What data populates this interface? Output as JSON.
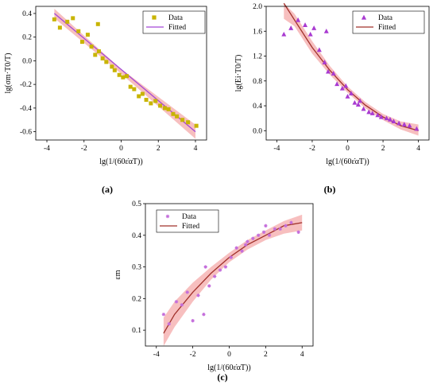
{
  "chart_data": [
    {
      "type": "scatter",
      "panel_label": "(a)",
      "ylabel": "lg(σm·T0/T)",
      "xlabel": "lg(1/(60ε̇αT))",
      "xlim": [
        -4.6,
        4.6
      ],
      "ylim": [
        -0.67,
        0.46
      ],
      "x_ticks": [
        "-4",
        "-2",
        "0",
        "2",
        "4"
      ],
      "y_ticks": [
        "0.4",
        "0.2",
        "0.0",
        "-0.2",
        "-0.4",
        "-0.6"
      ],
      "legend": [
        "Data",
        "Fitted"
      ],
      "legend_position": "top-right",
      "colors": {
        "data": "#c8b400",
        "fit": "#a347d6",
        "band": "#f08a8a"
      },
      "series": [
        {
          "name": "Data",
          "kind": "points",
          "x": [
            -3.6,
            -3.3,
            -2.6,
            -2.3,
            -2.1,
            -1.8,
            -1.6,
            -1.4,
            -1.25,
            -1.0,
            -0.8,
            -0.5,
            -0.35,
            -0.1,
            0.1,
            0.3,
            0.5,
            0.7,
            0.95,
            1.15,
            1.35,
            1.6,
            1.85,
            2.1,
            2.35,
            2.55,
            2.8,
            3.0,
            3.3,
            3.6,
            4.05,
            -2.9,
            -1.2
          ],
          "y": [
            0.35,
            0.28,
            0.36,
            0.25,
            0.16,
            0.22,
            0.12,
            0.05,
            0.31,
            0.02,
            -0.01,
            -0.05,
            -0.08,
            -0.12,
            -0.14,
            -0.13,
            -0.22,
            -0.24,
            -0.3,
            -0.28,
            -0.33,
            -0.36,
            -0.34,
            -0.38,
            -0.4,
            -0.41,
            -0.45,
            -0.47,
            -0.5,
            -0.52,
            -0.55,
            0.33,
            0.08
          ]
        },
        {
          "name": "Fitted",
          "kind": "line",
          "x": [
            -3.6,
            4.0
          ],
          "y": [
            0.4,
            -0.6
          ]
        }
      ],
      "band": {
        "x": [
          -3.6,
          0.0,
          4.0
        ],
        "upper": [
          0.44,
          -0.07,
          -0.54
        ],
        "lower": [
          0.36,
          -0.11,
          -0.66
        ]
      }
    },
    {
      "type": "scatter",
      "panel_label": "(b)",
      "ylabel": "lg(Ei·T0/T)",
      "xlabel": "lg(1/(60ε̇αT))",
      "xlim": [
        -4.6,
        4.6
      ],
      "ylim": [
        -0.15,
        2.0
      ],
      "x_ticks": [
        "-4",
        "-2",
        "0",
        "2",
        "4"
      ],
      "y_ticks": [
        "2.0",
        "1.6",
        "1.2",
        "0.8",
        "0.4",
        "0.0"
      ],
      "legend": [
        "Data",
        "Fitted"
      ],
      "legend_position": "top-right",
      "colors": {
        "data": "#a93bd1",
        "fit": "#a0302a",
        "band": "#f08a8a"
      },
      "series": [
        {
          "name": "Data",
          "kind": "points",
          "x": [
            -3.6,
            -3.2,
            -2.8,
            -2.4,
            -2.1,
            -1.9,
            -1.6,
            -1.3,
            -1.1,
            -0.8,
            -0.6,
            -0.3,
            0.0,
            0.2,
            0.4,
            0.6,
            0.9,
            1.2,
            1.4,
            1.7,
            1.9,
            2.2,
            2.4,
            2.6,
            2.9,
            3.2,
            3.5,
            3.9,
            -1.2,
            -0.1,
            0.7
          ],
          "y": [
            1.55,
            1.65,
            1.78,
            1.7,
            1.55,
            1.65,
            1.3,
            1.1,
            0.95,
            0.92,
            0.75,
            0.68,
            0.55,
            0.6,
            0.45,
            0.42,
            0.35,
            0.3,
            0.28,
            0.25,
            0.22,
            0.2,
            0.18,
            0.15,
            0.12,
            0.1,
            0.08,
            0.03,
            1.6,
            0.72,
            0.48
          ]
        },
        {
          "name": "Fitted",
          "kind": "curve",
          "x": [
            -3.6,
            -3.0,
            -2.0,
            -1.0,
            0.0,
            1.0,
            2.0,
            3.0,
            4.0
          ],
          "y": [
            2.05,
            1.78,
            1.34,
            0.97,
            0.66,
            0.41,
            0.22,
            0.08,
            0.0
          ]
        }
      ],
      "band": {
        "x": [
          -3.6,
          -3.0,
          -2.0,
          -1.0,
          0.0,
          1.0,
          2.0,
          3.0,
          4.0
        ],
        "upper": [
          2.05,
          1.88,
          1.44,
          1.04,
          0.71,
          0.46,
          0.27,
          0.15,
          0.1
        ],
        "lower": [
          1.8,
          1.68,
          1.24,
          0.9,
          0.61,
          0.36,
          0.17,
          0.02,
          -0.08
        ]
      }
    },
    {
      "type": "scatter",
      "panel_label": "(c)",
      "ylabel": "εm",
      "xlabel": "lg(1/(60ε̇αT))",
      "xlim": [
        -4.6,
        4.6
      ],
      "ylim": [
        0.05,
        0.5
      ],
      "x_ticks": [
        "-4",
        "-2",
        "0",
        "2",
        "4"
      ],
      "y_ticks": [
        "0.5",
        "0.4",
        "0.3",
        "0.2",
        "0.1"
      ],
      "legend": [
        "Data",
        "Fitted"
      ],
      "legend_position": "top-left",
      "colors": {
        "data": "#c46ddb",
        "fit": "#a0302a",
        "band": "#f08a8a"
      },
      "series": [
        {
          "name": "Data",
          "kind": "points",
          "x": [
            -3.6,
            -3.3,
            -2.9,
            -2.6,
            -2.3,
            -2.0,
            -1.7,
            -1.4,
            -1.1,
            -0.8,
            -0.5,
            -0.2,
            0.1,
            0.4,
            0.7,
            1.0,
            1.3,
            1.6,
            1.9,
            2.2,
            2.5,
            2.8,
            3.1,
            3.4,
            3.8,
            -1.3,
            0.9,
            2.0
          ],
          "y": [
            0.15,
            0.12,
            0.19,
            0.18,
            0.22,
            0.13,
            0.21,
            0.15,
            0.24,
            0.27,
            0.29,
            0.3,
            0.33,
            0.36,
            0.35,
            0.38,
            0.39,
            0.4,
            0.41,
            0.4,
            0.42,
            0.42,
            0.43,
            0.44,
            0.41,
            0.3,
            0.37,
            0.43
          ]
        },
        {
          "name": "Fitted",
          "kind": "curve",
          "x": [
            -3.6,
            -3.0,
            -2.0,
            -1.0,
            0.0,
            1.0,
            2.0,
            3.0,
            4.0
          ],
          "y": [
            0.09,
            0.15,
            0.22,
            0.28,
            0.33,
            0.37,
            0.4,
            0.43,
            0.44
          ]
        }
      ],
      "band": {
        "x": [
          -3.6,
          -3.0,
          -2.0,
          -1.0,
          0.0,
          1.0,
          2.0,
          3.0,
          4.0
        ],
        "upper": [
          0.14,
          0.19,
          0.25,
          0.3,
          0.345,
          0.385,
          0.415,
          0.445,
          0.465
        ],
        "lower": [
          0.05,
          0.11,
          0.19,
          0.26,
          0.315,
          0.355,
          0.385,
          0.405,
          0.415
        ]
      }
    }
  ]
}
